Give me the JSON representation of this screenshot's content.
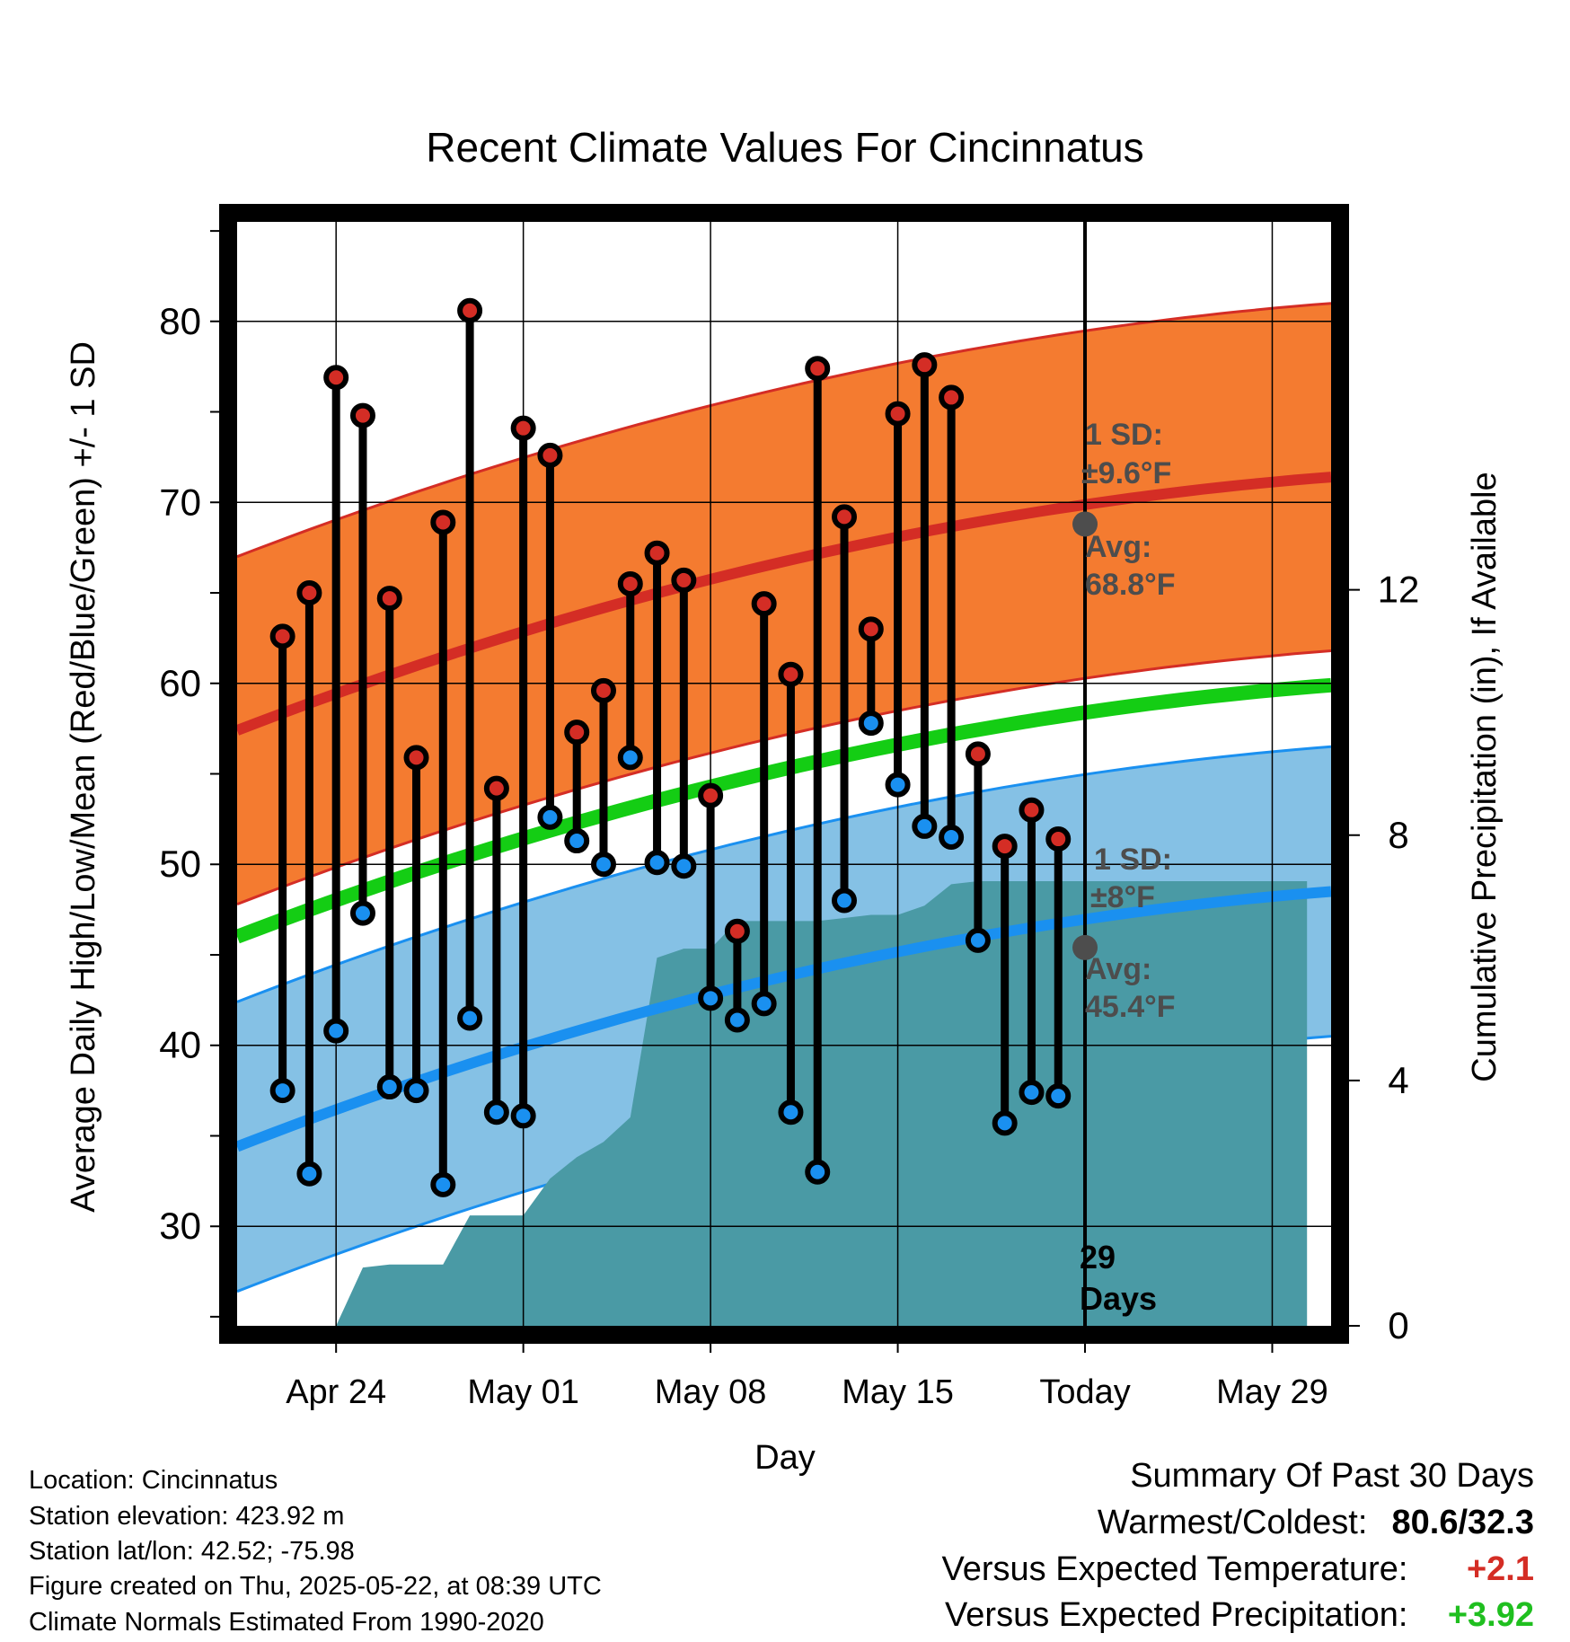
{
  "chart_data": {
    "type": "line",
    "title": "Recent Climate Values For Cincinnatus",
    "xlabel": "Day",
    "ylabel": "Average Daily High/Low/Mean (Red/Blue/Green) +/- 1 SD",
    "y2label": "Cumulative Precipitation (in), If Available",
    "xlim": [
      -3.7,
      37.2
    ],
    "ylim": [
      24.5,
      85.5
    ],
    "y2lim": [
      0,
      18
    ],
    "x_ticks": [
      {
        "x": 0,
        "label": "Apr 24"
      },
      {
        "x": 7,
        "label": "May 01"
      },
      {
        "x": 14,
        "label": "May 08"
      },
      {
        "x": 21,
        "label": "May 15"
      },
      {
        "x": 28,
        "label": "Today"
      },
      {
        "x": 35,
        "label": "May 29"
      }
    ],
    "y_ticks": [
      30,
      40,
      50,
      60,
      70,
      80
    ],
    "y2_ticks": [
      0,
      4,
      8,
      12
    ],
    "grid": true,
    "days": [
      -2,
      -1,
      0,
      1,
      2,
      3,
      4,
      5,
      6,
      7,
      8,
      9,
      10,
      11,
      12,
      13,
      14,
      15,
      16,
      17,
      18,
      19,
      20,
      21,
      22,
      23,
      24,
      25,
      26,
      27
    ],
    "highs": [
      62.6,
      65.0,
      76.9,
      74.8,
      64.7,
      55.9,
      68.9,
      80.6,
      54.2,
      74.1,
      72.6,
      57.3,
      59.6,
      65.5,
      67.2,
      65.7,
      53.8,
      46.3,
      64.4,
      60.5,
      77.4,
      69.2,
      63.0,
      74.9,
      77.6,
      75.8,
      56.1,
      51.0,
      53.0,
      51.4
    ],
    "lows": [
      37.5,
      32.9,
      40.8,
      47.3,
      37.7,
      37.5,
      32.3,
      41.5,
      36.3,
      36.1,
      52.6,
      51.3,
      50.0,
      55.9,
      50.1,
      49.9,
      42.6,
      41.4,
      42.3,
      36.3,
      33.0,
      48.0,
      57.8,
      54.4,
      52.1,
      51.5,
      45.8,
      35.7,
      37.4,
      37.2
    ],
    "precip_cum": [
      [
        -2.9,
        0
      ],
      [
        -1,
        0
      ],
      [
        0,
        0
      ],
      [
        1,
        0.95
      ],
      [
        2,
        1.0
      ],
      [
        3,
        1.0
      ],
      [
        4,
        1.0
      ],
      [
        5,
        1.8
      ],
      [
        6,
        1.8
      ],
      [
        7,
        1.8
      ],
      [
        8,
        2.4
      ],
      [
        9,
        2.75
      ],
      [
        10,
        3.0
      ],
      [
        11,
        3.4
      ],
      [
        12,
        6.0
      ],
      [
        13,
        6.15
      ],
      [
        14,
        6.15
      ],
      [
        15,
        6.6
      ],
      [
        16,
        6.6
      ],
      [
        17,
        6.6
      ],
      [
        18,
        6.6
      ],
      [
        19,
        6.65
      ],
      [
        20,
        6.7
      ],
      [
        21,
        6.7
      ],
      [
        22,
        6.85
      ],
      [
        23,
        7.2
      ],
      [
        24,
        7.25
      ],
      [
        25,
        7.25
      ],
      [
        26,
        7.25
      ],
      [
        27,
        7.25
      ],
      [
        28,
        7.25
      ],
      [
        36.3,
        7.25
      ]
    ],
    "normal_high": {
      "start": 57.4,
      "end": 71.4
    },
    "normal_low": {
      "start": 34.4,
      "end": 48.5
    },
    "normal_mean": {
      "start": 46.0,
      "end": 59.9
    },
    "sd_high": 9.6,
    "sd_low": 8.0,
    "today_x": 28,
    "today_avg_high": 68.8,
    "today_avg_low": 45.4,
    "annotations": {
      "high_sd_label": "1 SD:",
      "high_sd_value": "±9.6°F",
      "high_avg_label": "Avg:",
      "high_avg_value": "68.8°F",
      "low_sd_label": "1 SD:",
      "low_sd_value": "±8°F",
      "low_avg_label": "Avg:",
      "low_avg_value": "45.4°F",
      "days_count": "29",
      "days_label": "Days"
    },
    "colors": {
      "high_band": "#f47b30",
      "high_line": "#d42d25",
      "low_band": "#85c1e5",
      "low_line": "#1a90f0",
      "mean_line": "#14cd14",
      "precip": "#4a9aa5",
      "high_dot": "#d42d25",
      "low_dot": "#1a90f0",
      "annotation": "#4d4d4d"
    }
  },
  "info": {
    "location": "Location: Cincinnatus",
    "elevation": "Station elevation: 423.92 m",
    "latlon": "Station lat/lon: 42.52; -75.98",
    "created": "Figure created on Thu, 2025-05-22, at 08:39 UTC",
    "normals": "Climate Normals Estimated From 1990-2020"
  },
  "summary": {
    "title": "Summary Of Past 30 Days",
    "warm_cold_label": "Warmest/Coldest:",
    "warm_cold_value": "80.6/32.3",
    "temp_label": "Versus Expected Temperature:",
    "temp_value": "+2.1",
    "temp_color": "#d42d25",
    "precip_label": "Versus Expected Precipitation:",
    "precip_value": "+3.92",
    "precip_color": "#1fbf1f"
  }
}
